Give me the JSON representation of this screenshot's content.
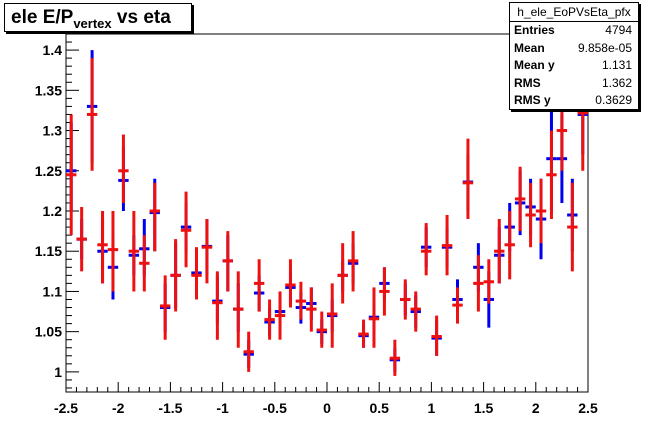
{
  "title": {
    "main": "ele E/P",
    "sub": "vertex",
    "rest": " vs eta"
  },
  "stats": {
    "name": "h_ele_EoPVsEta_pfx",
    "rows": [
      {
        "key": "Entries",
        "value": "4794"
      },
      {
        "key": "Mean",
        "value": "9.858e-05"
      },
      {
        "key": "Mean y",
        "value": "1.131"
      },
      {
        "key": "RMS",
        "value": "1.362"
      },
      {
        "key": "RMS y",
        "value": "0.3629"
      }
    ]
  },
  "colors": {
    "series_blue": "#0000ee",
    "series_red": "#ee1111",
    "axis": "#000000"
  },
  "chart_data": {
    "type": "scatter",
    "title": "ele E/Pvertex vs eta",
    "xlim": [
      -2.5,
      2.5
    ],
    "ylim": [
      0.975,
      1.42
    ],
    "xticks": [
      -2.5,
      -2,
      -1.5,
      -1,
      -0.5,
      0,
      0.5,
      1,
      1.5,
      2,
      2.5
    ],
    "xtick_labels": [
      "-2.5",
      "-2",
      "-1.5",
      "-1",
      "-0.5",
      "0",
      "0.5",
      "1",
      "1.5",
      "2",
      "2.5"
    ],
    "yticks": [
      1,
      1.05,
      1.1,
      1.15,
      1.2,
      1.25,
      1.3,
      1.35,
      1.4
    ],
    "ytick_labels": [
      "1",
      "1.05",
      "1.1",
      "1.15",
      "1.2",
      "1.25",
      "1.3",
      "1.35",
      "1.4"
    ],
    "series": [
      {
        "color": "blue",
        "points": [
          {
            "x": -2.45,
            "y": 1.25,
            "lo": 1.2,
            "hi": 1.31
          },
          {
            "x": -2.35,
            "y": 1.165,
            "lo": 1.14,
            "hi": 1.19
          },
          {
            "x": -2.25,
            "y": 1.33,
            "lo": 1.26,
            "hi": 1.4
          },
          {
            "x": -2.15,
            "y": 1.15,
            "lo": 1.11,
            "hi": 1.19
          },
          {
            "x": -2.05,
            "y": 1.13,
            "lo": 1.09,
            "hi": 1.17
          },
          {
            "x": -1.95,
            "y": 1.238,
            "lo": 1.2,
            "hi": 1.28
          },
          {
            "x": -1.85,
            "y": 1.145,
            "lo": 1.12,
            "hi": 1.17
          },
          {
            "x": -1.75,
            "y": 1.153,
            "lo": 1.12,
            "hi": 1.19
          },
          {
            "x": -1.65,
            "y": 1.198,
            "lo": 1.15,
            "hi": 1.24
          },
          {
            "x": -1.55,
            "y": 1.08,
            "lo": 1.05,
            "hi": 1.11
          },
          {
            "x": -1.45,
            "y": 1.12,
            "lo": 1.08,
            "hi": 1.16
          },
          {
            "x": -1.35,
            "y": 1.18,
            "lo": 1.15,
            "hi": 1.21
          },
          {
            "x": -1.25,
            "y": 1.123,
            "lo": 1.1,
            "hi": 1.15
          },
          {
            "x": -1.15,
            "y": 1.156,
            "lo": 1.12,
            "hi": 1.19
          },
          {
            "x": -1.05,
            "y": 1.088,
            "lo": 1.06,
            "hi": 1.12
          },
          {
            "x": -0.95,
            "y": 1.138,
            "lo": 1.1,
            "hi": 1.17
          },
          {
            "x": -0.85,
            "y": 1.078,
            "lo": 1.05,
            "hi": 1.11
          },
          {
            "x": -0.75,
            "y": 1.022,
            "lo": 1.005,
            "hi": 1.04
          },
          {
            "x": -0.65,
            "y": 1.098,
            "lo": 1.075,
            "hi": 1.12
          },
          {
            "x": -0.55,
            "y": 1.062,
            "lo": 1.045,
            "hi": 1.08
          },
          {
            "x": -0.45,
            "y": 1.075,
            "lo": 1.06,
            "hi": 1.09
          },
          {
            "x": -0.35,
            "y": 1.105,
            "lo": 1.085,
            "hi": 1.125
          },
          {
            "x": -0.25,
            "y": 1.08,
            "lo": 1.06,
            "hi": 1.1
          },
          {
            "x": -0.15,
            "y": 1.085,
            "lo": 1.065,
            "hi": 1.105
          },
          {
            "x": -0.05,
            "y": 1.05,
            "lo": 1.035,
            "hi": 1.065
          },
          {
            "x": 0.05,
            "y": 1.07,
            "lo": 1.05,
            "hi": 1.09
          },
          {
            "x": 0.15,
            "y": 1.12,
            "lo": 1.1,
            "hi": 1.14
          },
          {
            "x": 0.25,
            "y": 1.135,
            "lo": 1.11,
            "hi": 1.16
          },
          {
            "x": 0.35,
            "y": 1.045,
            "lo": 1.03,
            "hi": 1.06
          },
          {
            "x": 0.45,
            "y": 1.068,
            "lo": 1.05,
            "hi": 1.085
          },
          {
            "x": 0.55,
            "y": 1.11,
            "lo": 1.09,
            "hi": 1.13
          },
          {
            "x": 0.65,
            "y": 1.015,
            "lo": 1.0,
            "hi": 1.03
          },
          {
            "x": 0.75,
            "y": 1.09,
            "lo": 1.07,
            "hi": 1.11
          },
          {
            "x": 0.85,
            "y": 1.075,
            "lo": 1.055,
            "hi": 1.095
          },
          {
            "x": 0.95,
            "y": 1.155,
            "lo": 1.13,
            "hi": 1.18
          },
          {
            "x": 1.05,
            "y": 1.042,
            "lo": 1.02,
            "hi": 1.065
          },
          {
            "x": 1.15,
            "y": 1.155,
            "lo": 1.13,
            "hi": 1.18
          },
          {
            "x": 1.25,
            "y": 1.09,
            "lo": 1.065,
            "hi": 1.115
          },
          {
            "x": 1.35,
            "y": 1.236,
            "lo": 1.2,
            "hi": 1.27
          },
          {
            "x": 1.45,
            "y": 1.13,
            "lo": 1.1,
            "hi": 1.16
          },
          {
            "x": 1.55,
            "y": 1.09,
            "lo": 1.055,
            "hi": 1.125
          },
          {
            "x": 1.65,
            "y": 1.145,
            "lo": 1.11,
            "hi": 1.18
          },
          {
            "x": 1.75,
            "y": 1.18,
            "lo": 1.15,
            "hi": 1.21
          },
          {
            "x": 1.85,
            "y": 1.21,
            "lo": 1.17,
            "hi": 1.25
          },
          {
            "x": 1.95,
            "y": 1.205,
            "lo": 1.17,
            "hi": 1.24
          },
          {
            "x": 2.05,
            "y": 1.19,
            "lo": 1.14,
            "hi": 1.24
          },
          {
            "x": 2.15,
            "y": 1.265,
            "lo": 1.2,
            "hi": 1.33
          },
          {
            "x": 2.25,
            "y": 1.265,
            "lo": 1.21,
            "hi": 1.32
          },
          {
            "x": 2.35,
            "y": 1.195,
            "lo": 1.15,
            "hi": 1.24
          },
          {
            "x": 2.45,
            "y": 1.32,
            "lo": 1.27,
            "hi": 1.37
          }
        ]
      },
      {
        "color": "red",
        "points": [
          {
            "x": -2.45,
            "y": 1.245,
            "lo": 1.17,
            "hi": 1.32
          },
          {
            "x": -2.35,
            "y": 1.165,
            "lo": 1.125,
            "hi": 1.205
          },
          {
            "x": -2.25,
            "y": 1.32,
            "lo": 1.25,
            "hi": 1.39
          },
          {
            "x": -2.15,
            "y": 1.158,
            "lo": 1.11,
            "hi": 1.2
          },
          {
            "x": -2.05,
            "y": 1.152,
            "lo": 1.1,
            "hi": 1.2
          },
          {
            "x": -1.95,
            "y": 1.25,
            "lo": 1.21,
            "hi": 1.295
          },
          {
            "x": -1.85,
            "y": 1.15,
            "lo": 1.1,
            "hi": 1.2
          },
          {
            "x": -1.75,
            "y": 1.135,
            "lo": 1.1,
            "hi": 1.17
          },
          {
            "x": -1.65,
            "y": 1.2,
            "lo": 1.15,
            "hi": 1.235
          },
          {
            "x": -1.55,
            "y": 1.082,
            "lo": 1.04,
            "hi": 1.12
          },
          {
            "x": -1.45,
            "y": 1.12,
            "lo": 1.075,
            "hi": 1.165
          },
          {
            "x": -1.35,
            "y": 1.176,
            "lo": 1.13,
            "hi": 1.224
          },
          {
            "x": -1.25,
            "y": 1.12,
            "lo": 1.09,
            "hi": 1.155
          },
          {
            "x": -1.15,
            "y": 1.155,
            "lo": 1.11,
            "hi": 1.19
          },
          {
            "x": -1.05,
            "y": 1.086,
            "lo": 1.04,
            "hi": 1.125
          },
          {
            "x": -0.95,
            "y": 1.138,
            "lo": 1.1,
            "hi": 1.175
          },
          {
            "x": -0.85,
            "y": 1.078,
            "lo": 1.03,
            "hi": 1.125
          },
          {
            "x": -0.75,
            "y": 1.025,
            "lo": 1.0,
            "hi": 1.05
          },
          {
            "x": -0.65,
            "y": 1.11,
            "lo": 1.075,
            "hi": 1.14
          },
          {
            "x": -0.55,
            "y": 1.065,
            "lo": 1.04,
            "hi": 1.09
          },
          {
            "x": -0.45,
            "y": 1.07,
            "lo": 1.04,
            "hi": 1.1
          },
          {
            "x": -0.35,
            "y": 1.108,
            "lo": 1.08,
            "hi": 1.14
          },
          {
            "x": -0.25,
            "y": 1.088,
            "lo": 1.065,
            "hi": 1.112
          },
          {
            "x": -0.15,
            "y": 1.078,
            "lo": 1.05,
            "hi": 1.105
          },
          {
            "x": -0.05,
            "y": 1.052,
            "lo": 1.03,
            "hi": 1.075
          },
          {
            "x": 0.05,
            "y": 1.072,
            "lo": 1.03,
            "hi": 1.11
          },
          {
            "x": 0.15,
            "y": 1.12,
            "lo": 1.085,
            "hi": 1.16
          },
          {
            "x": 0.25,
            "y": 1.138,
            "lo": 1.1,
            "hi": 1.175
          },
          {
            "x": 0.35,
            "y": 1.047,
            "lo": 1.03,
            "hi": 1.065
          },
          {
            "x": 0.45,
            "y": 1.066,
            "lo": 1.03,
            "hi": 1.105
          },
          {
            "x": 0.55,
            "y": 1.1,
            "lo": 1.07,
            "hi": 1.13
          },
          {
            "x": 0.65,
            "y": 1.017,
            "lo": 0.995,
            "hi": 1.04
          },
          {
            "x": 0.75,
            "y": 1.09,
            "lo": 1.065,
            "hi": 1.115
          },
          {
            "x": 0.85,
            "y": 1.078,
            "lo": 1.05,
            "hi": 1.1
          },
          {
            "x": 0.95,
            "y": 1.15,
            "lo": 1.12,
            "hi": 1.185
          },
          {
            "x": 1.05,
            "y": 1.044,
            "lo": 1.02,
            "hi": 1.07
          },
          {
            "x": 1.15,
            "y": 1.157,
            "lo": 1.12,
            "hi": 1.195
          },
          {
            "x": 1.25,
            "y": 1.083,
            "lo": 1.06,
            "hi": 1.105
          },
          {
            "x": 1.35,
            "y": 1.235,
            "lo": 1.19,
            "hi": 1.29
          },
          {
            "x": 1.45,
            "y": 1.11,
            "lo": 1.075,
            "hi": 1.145
          },
          {
            "x": 1.55,
            "y": 1.112,
            "lo": 1.085,
            "hi": 1.14
          },
          {
            "x": 1.65,
            "y": 1.15,
            "lo": 1.11,
            "hi": 1.19
          },
          {
            "x": 1.75,
            "y": 1.158,
            "lo": 1.115,
            "hi": 1.2
          },
          {
            "x": 1.85,
            "y": 1.215,
            "lo": 1.175,
            "hi": 1.255
          },
          {
            "x": 1.95,
            "y": 1.195,
            "lo": 1.155,
            "hi": 1.235
          },
          {
            "x": 2.05,
            "y": 1.2,
            "lo": 1.16,
            "hi": 1.24
          },
          {
            "x": 2.15,
            "y": 1.245,
            "lo": 1.19,
            "hi": 1.3
          },
          {
            "x": 2.25,
            "y": 1.3,
            "lo": 1.25,
            "hi": 1.35
          },
          {
            "x": 2.35,
            "y": 1.18,
            "lo": 1.125,
            "hi": 1.235
          },
          {
            "x": 2.45,
            "y": 1.322,
            "lo": 1.25,
            "hi": 1.39
          }
        ]
      }
    ]
  }
}
